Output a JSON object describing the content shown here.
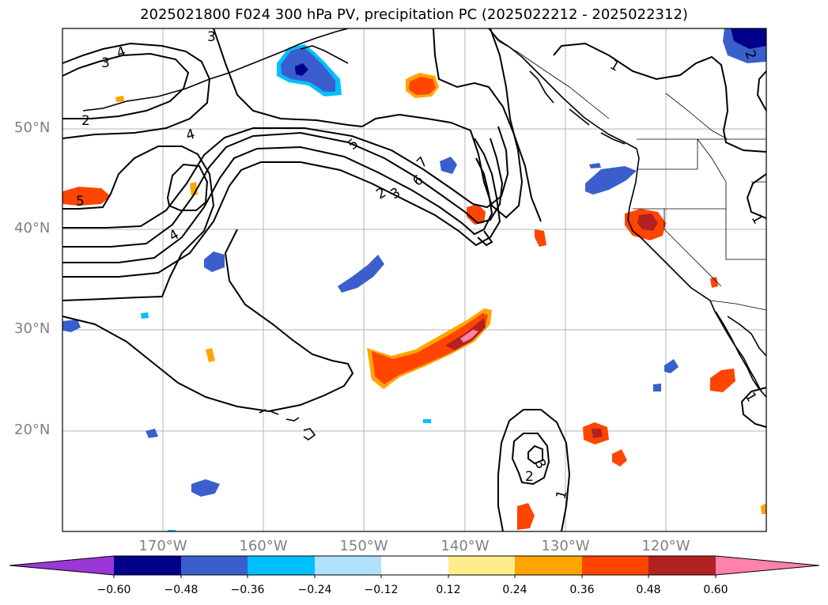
{
  "title": "2025021800 F024 300 hPa PV, precipitation PC (2025022212 - 2025022312)",
  "map": {
    "projection": "lat-lon",
    "lon_range": [
      "180°",
      "110°W"
    ],
    "lat_range": [
      "10°N",
      "60°N"
    ],
    "lat_labels": [
      "50°N",
      "40°N",
      "30°N",
      "20°N"
    ],
    "lon_labels": [
      "170°W",
      "160°W",
      "150°W",
      "140°W",
      "130°W",
      "120°W"
    ],
    "gridlines": true,
    "contour_labels": [
      "3",
      "3",
      "4",
      "2",
      "4",
      "5",
      "4",
      "5",
      "7",
      "6",
      "3",
      "2",
      "1",
      "1",
      "3",
      "2",
      "1",
      "2",
      "1"
    ]
  },
  "colorbar": {
    "ticks": [
      "−0.60",
      "−0.48",
      "−0.36",
      "−0.24",
      "−0.12",
      "0.12",
      "0.24",
      "0.36",
      "0.48",
      "0.60"
    ],
    "colors": [
      "#9a37d6",
      "#00008b",
      "#3a5fcd",
      "#00bfff",
      "#b0e2ff",
      "#ffffff",
      "#ffec8b",
      "#ffa500",
      "#ff4500",
      "#b22222",
      "#ff82ab"
    ]
  }
}
